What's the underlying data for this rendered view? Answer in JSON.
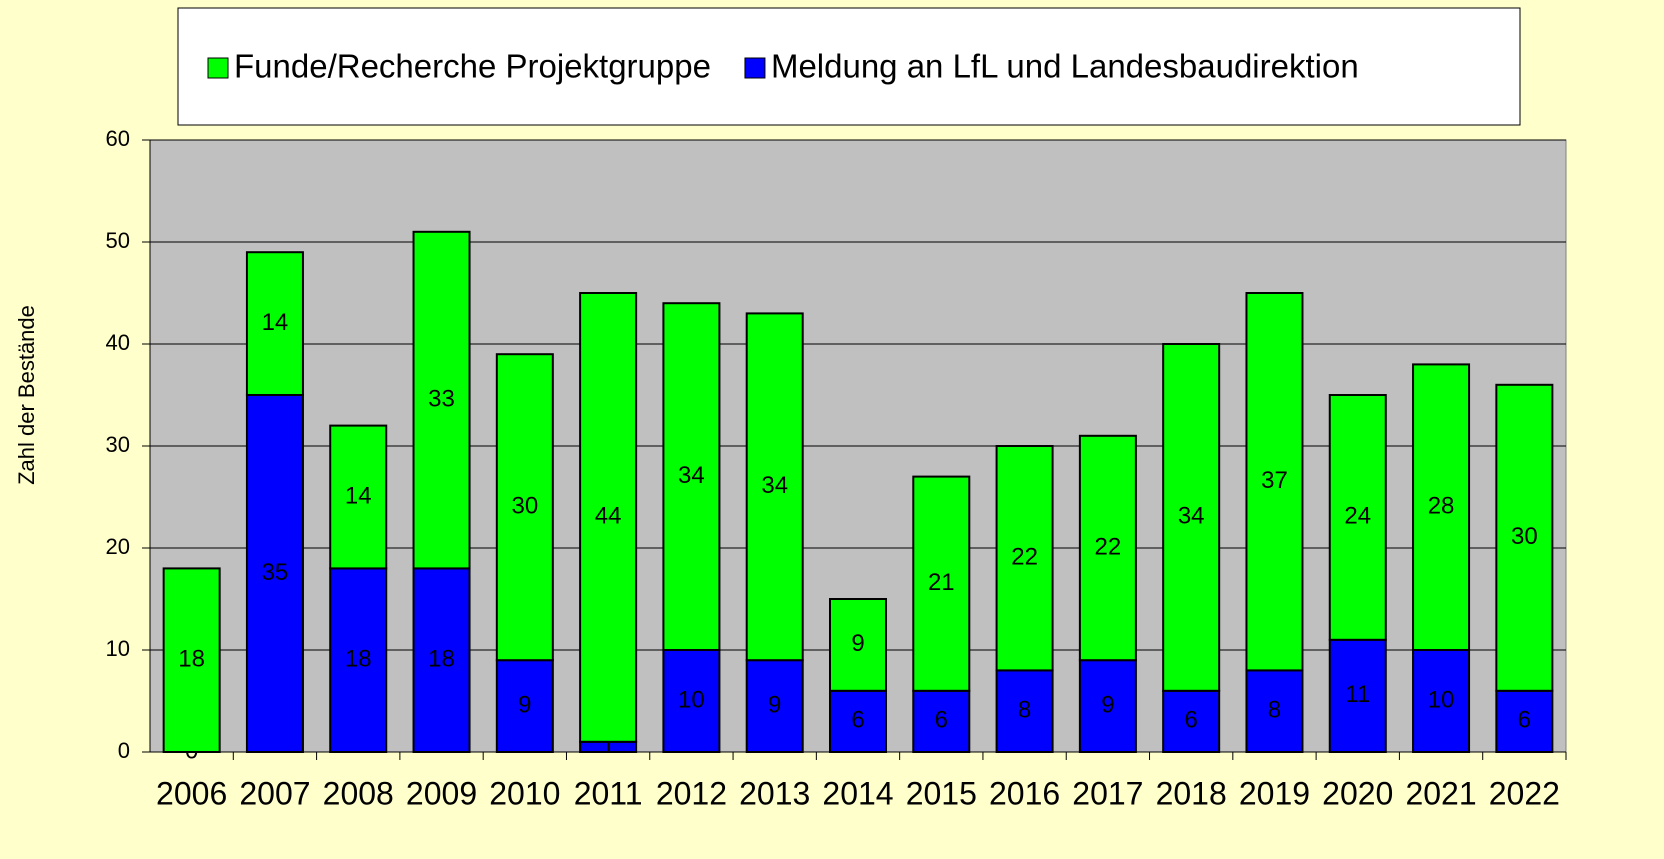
{
  "chart_data": {
    "type": "stacked_bar",
    "y_axis_label": "Zahl der Bestände",
    "categories": [
      "2006",
      "2007",
      "2008",
      "2009",
      "2010",
      "2011",
      "2012",
      "2013",
      "2014",
      "2015",
      "2016",
      "2017",
      "2018",
      "2019",
      "2020",
      "2021",
      "2022"
    ],
    "series": [
      {
        "name": "Funde/Recherche Projektgruppe",
        "color": "#00ff00",
        "values": [
          18,
          14,
          14,
          33,
          30,
          44,
          34,
          34,
          9,
          21,
          22,
          22,
          34,
          37,
          24,
          28,
          30
        ]
      },
      {
        "name": "Meldung an LfL und Landesbaudirektion",
        "color": "#0000ff",
        "values": [
          0,
          35,
          18,
          18,
          9,
          1,
          10,
          9,
          6,
          6,
          8,
          9,
          6,
          8,
          11,
          10,
          6
        ]
      }
    ],
    "ylim": [
      0,
      60
    ],
    "yticks": [
      0,
      10,
      20,
      30,
      40,
      50,
      60
    ],
    "grid": true,
    "legend": "top"
  }
}
